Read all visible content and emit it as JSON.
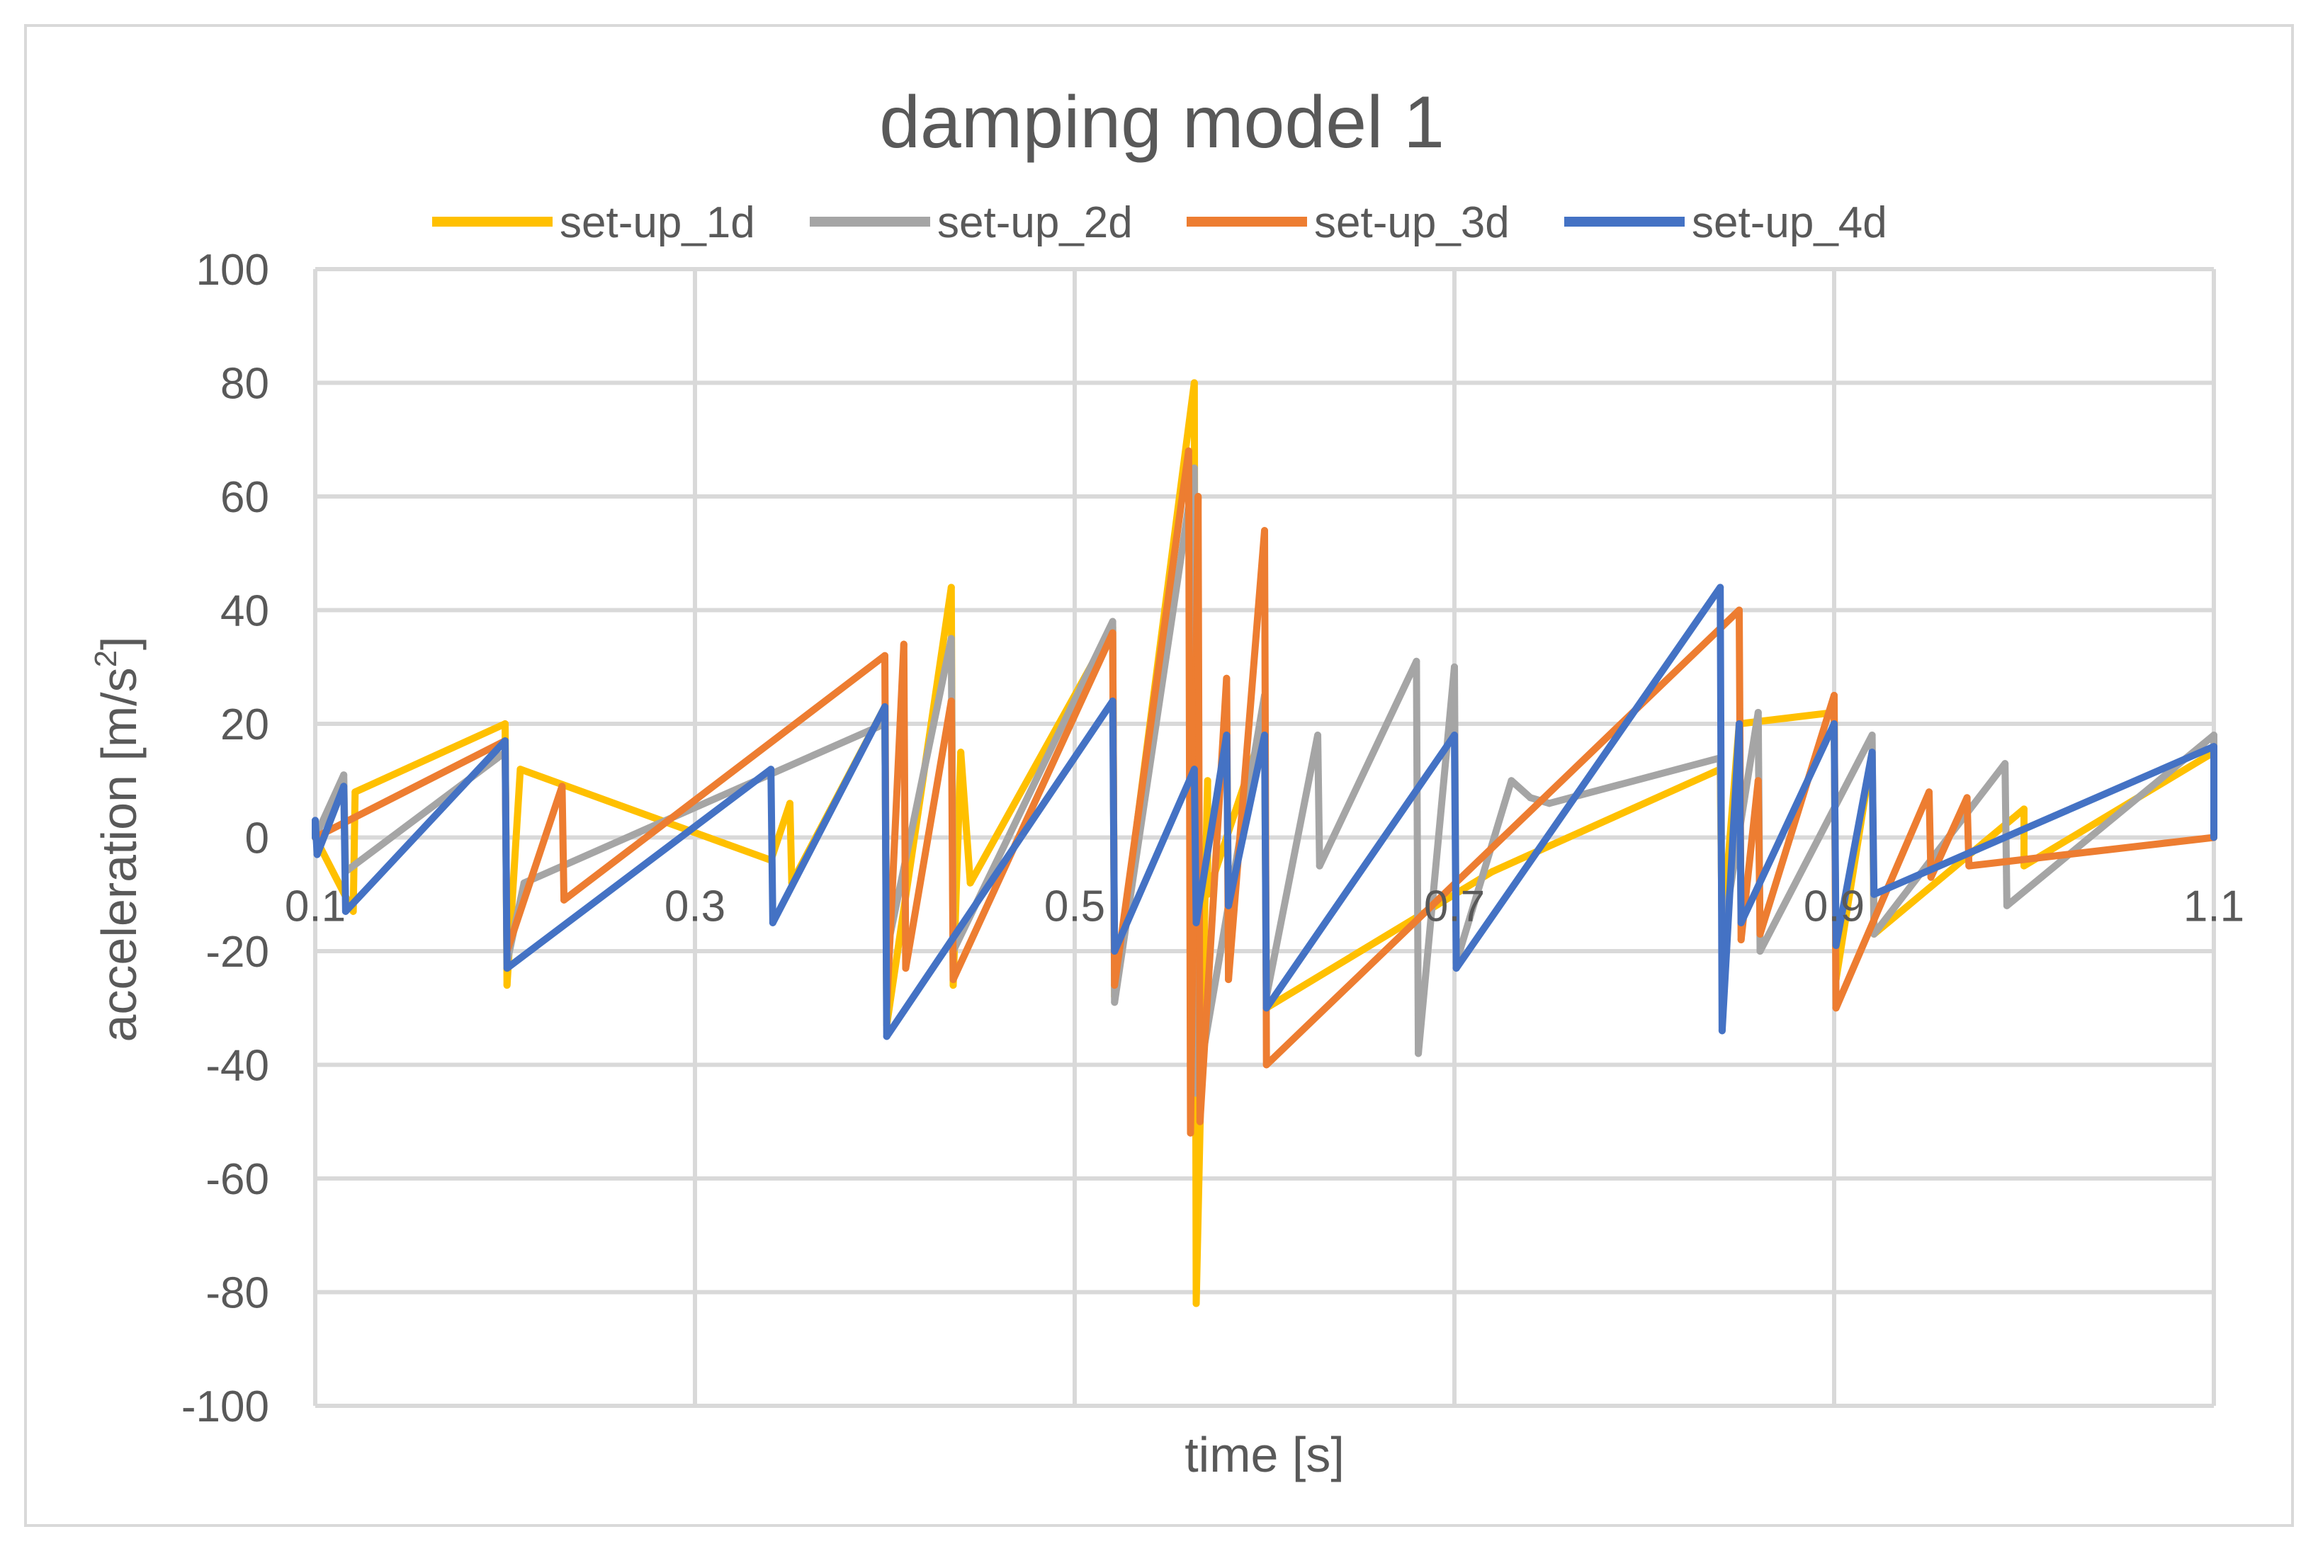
{
  "chart_data": {
    "type": "line",
    "title": "damping model 1",
    "xlabel": "time [s]",
    "ylabel": "acceleration [m/s",
    "ylabel_sup": "2",
    "ylabel_end": "]",
    "xlim": [
      0.1,
      1.1
    ],
    "ylim": [
      -100,
      100
    ],
    "x_ticks": [
      0.1,
      0.3,
      0.5,
      0.7,
      0.9,
      1.1
    ],
    "x_tick_labels": [
      "0.1",
      "0.3",
      "0.5",
      "0.7",
      "0.9",
      "1.1"
    ],
    "y_ticks": [
      100,
      80,
      60,
      40,
      20,
      0,
      -20,
      -40,
      -60,
      -80,
      -100
    ],
    "y_tick_labels": [
      "100",
      "80",
      "60",
      "40",
      "20",
      "0",
      "-20",
      "-40",
      "-60",
      "-80",
      "-100"
    ],
    "grid": true,
    "legend_position": "top",
    "series": [
      {
        "name": "set-up_1d",
        "color": "#ffc000",
        "points": [
          [
            0.1,
            0
          ],
          [
            0.12,
            -13
          ],
          [
            0.121,
            8
          ],
          [
            0.2,
            20
          ],
          [
            0.201,
            -26
          ],
          [
            0.208,
            12
          ],
          [
            0.34,
            -4
          ],
          [
            0.35,
            6
          ],
          [
            0.351,
            -8
          ],
          [
            0.4,
            23
          ],
          [
            0.401,
            -33
          ],
          [
            0.435,
            44
          ],
          [
            0.436,
            -26
          ],
          [
            0.44,
            15
          ],
          [
            0.445,
            -8
          ],
          [
            0.52,
            37
          ],
          [
            0.521,
            -28
          ],
          [
            0.563,
            80
          ],
          [
            0.564,
            -82
          ],
          [
            0.57,
            10
          ],
          [
            0.57,
            -10
          ],
          [
            0.6,
            20
          ],
          [
            0.601,
            -30
          ],
          [
            0.72,
            -6
          ],
          [
            0.84,
            12
          ],
          [
            0.841,
            -17
          ],
          [
            0.85,
            20
          ],
          [
            0.9,
            22
          ],
          [
            0.901,
            -25
          ],
          [
            0.92,
            15
          ],
          [
            0.921,
            -17
          ],
          [
            1.0,
            5
          ],
          [
            1.0,
            -5
          ],
          [
            1.1,
            15
          ],
          [
            1.1,
            0
          ]
        ]
      },
      {
        "name": "set-up_2d",
        "color": "#a5a5a5",
        "points": [
          [
            0.1,
            0
          ],
          [
            0.115,
            11
          ],
          [
            0.116,
            -6
          ],
          [
            0.2,
            15
          ],
          [
            0.201,
            -22
          ],
          [
            0.21,
            -8
          ],
          [
            0.4,
            20
          ],
          [
            0.401,
            -20
          ],
          [
            0.435,
            35
          ],
          [
            0.436,
            -20
          ],
          [
            0.52,
            38
          ],
          [
            0.521,
            -29
          ],
          [
            0.563,
            65
          ],
          [
            0.564,
            -45
          ],
          [
            0.6,
            25
          ],
          [
            0.601,
            -28
          ],
          [
            0.628,
            18
          ],
          [
            0.629,
            -5
          ],
          [
            0.68,
            31
          ],
          [
            0.681,
            -38
          ],
          [
            0.7,
            30
          ],
          [
            0.701,
            -22
          ],
          [
            0.73,
            10
          ],
          [
            0.74,
            7
          ],
          [
            0.75,
            6
          ],
          [
            0.84,
            14
          ],
          [
            0.841,
            -18
          ],
          [
            0.86,
            22
          ],
          [
            0.861,
            -20
          ],
          [
            0.92,
            18
          ],
          [
            0.921,
            -17
          ],
          [
            0.99,
            13
          ],
          [
            0.991,
            -12
          ],
          [
            1.1,
            18
          ],
          [
            1.1,
            0
          ]
        ]
      },
      {
        "name": "set-up_3d",
        "color": "#ed7d31",
        "points": [
          [
            0.1,
            0
          ],
          [
            0.2,
            17
          ],
          [
            0.201,
            -20
          ],
          [
            0.23,
            9
          ],
          [
            0.231,
            -11
          ],
          [
            0.4,
            32
          ],
          [
            0.401,
            -30
          ],
          [
            0.41,
            34
          ],
          [
            0.411,
            -23
          ],
          [
            0.435,
            24
          ],
          [
            0.436,
            -25
          ],
          [
            0.52,
            36
          ],
          [
            0.521,
            -26
          ],
          [
            0.56,
            68
          ],
          [
            0.561,
            -52
          ],
          [
            0.565,
            60
          ],
          [
            0.566,
            -50
          ],
          [
            0.58,
            28
          ],
          [
            0.581,
            -25
          ],
          [
            0.6,
            54
          ],
          [
            0.601,
            -40
          ],
          [
            0.85,
            40
          ],
          [
            0.851,
            -18
          ],
          [
            0.86,
            10
          ],
          [
            0.861,
            -17
          ],
          [
            0.9,
            25
          ],
          [
            0.901,
            -30
          ],
          [
            0.95,
            8
          ],
          [
            0.951,
            -7
          ],
          [
            0.97,
            7
          ],
          [
            0.971,
            -5
          ],
          [
            1.1,
            0
          ]
        ]
      },
      {
        "name": "set-up_4d",
        "color": "#4472c4",
        "points": [
          [
            0.1,
            3
          ],
          [
            0.101,
            -3
          ],
          [
            0.115,
            9
          ],
          [
            0.116,
            -13
          ],
          [
            0.2,
            17
          ],
          [
            0.201,
            -23
          ],
          [
            0.34,
            12
          ],
          [
            0.341,
            -15
          ],
          [
            0.4,
            23
          ],
          [
            0.401,
            -35
          ],
          [
            0.52,
            24
          ],
          [
            0.521,
            -20
          ],
          [
            0.563,
            12
          ],
          [
            0.564,
            -15
          ],
          [
            0.58,
            18
          ],
          [
            0.581,
            -12
          ],
          [
            0.6,
            18
          ],
          [
            0.601,
            -30
          ],
          [
            0.7,
            18
          ],
          [
            0.701,
            -23
          ],
          [
            0.84,
            44
          ],
          [
            0.841,
            -34
          ],
          [
            0.85,
            20
          ],
          [
            0.851,
            -15
          ],
          [
            0.9,
            20
          ],
          [
            0.901,
            -19
          ],
          [
            0.92,
            15
          ],
          [
            0.921,
            -10
          ],
          [
            1.1,
            16
          ],
          [
            1.1,
            0
          ]
        ]
      }
    ]
  }
}
